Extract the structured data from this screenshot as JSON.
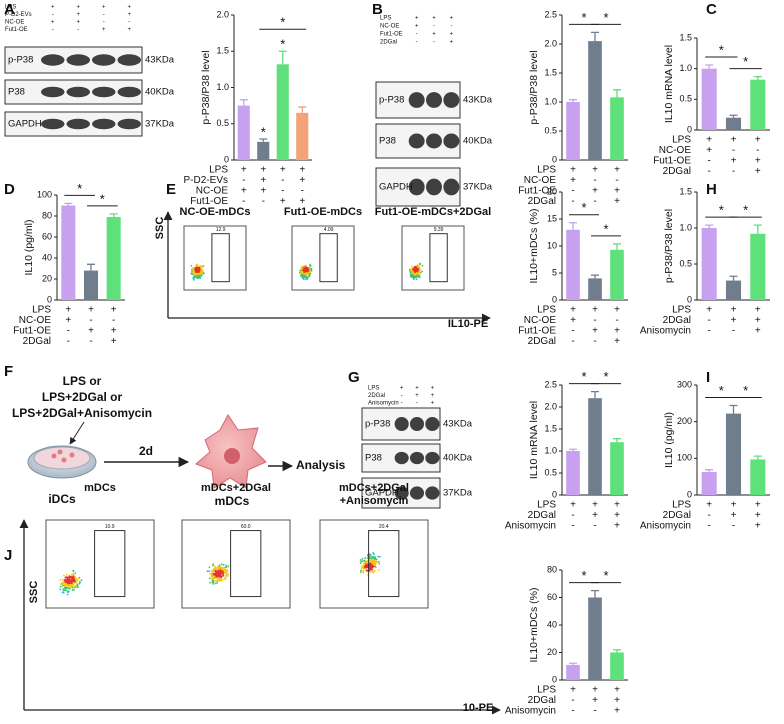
{
  "panels": [
    "A",
    "B",
    "C",
    "D",
    "E",
    "F",
    "G",
    "H",
    "I",
    "J"
  ],
  "chart_data": [
    {
      "type": "bar",
      "y_label": "p-P38/P38 level",
      "ylim": [
        0,
        2.0
      ],
      "yticks": [
        0,
        {
          "value": 0.5,
          "label": "0.5"
        },
        {
          "value": 1.0,
          "label": "1.0"
        },
        {
          "value": 1.5,
          "label": "1.5"
        },
        {
          "value": 2.0,
          "label": "2.0"
        }
      ],
      "values": [
        0.75,
        0.25,
        1.32,
        0.65
      ],
      "errors": [
        0.08,
        0.04,
        0.18,
        0.08
      ],
      "colors": [
        "#c8a0f0",
        "#6f7d8c",
        "#5ee07a",
        "#f2a378"
      ],
      "conditions": [
        {
          "name": "LPS",
          "signs": [
            "+",
            "+",
            "+",
            "+"
          ]
        },
        {
          "name": "P-D2-EVs",
          "signs": [
            "-",
            "+",
            "-",
            "+"
          ]
        },
        {
          "name": "NC-OE",
          "signs": [
            "+",
            "+",
            "-",
            "-"
          ]
        },
        {
          "name": "Fut1-OE",
          "signs": [
            "-",
            "-",
            "+",
            "+"
          ]
        }
      ],
      "stars": [
        {
          "bars": [
            1
          ],
          "label": "*"
        },
        {
          "bars": [
            2
          ],
          "label": "*"
        },
        {
          "bars": [
            1,
            3
          ],
          "label": "*"
        }
      ]
    },
    {
      "type": "bar",
      "y_label": "p-P38/P38 level",
      "ylim": [
        0,
        2.5
      ],
      "yticks": [
        0,
        {
          "value": 0.5,
          "label": "0.5"
        },
        {
          "value": 1.0,
          "label": "1.0"
        },
        {
          "value": 1.5,
          "label": "1.5"
        },
        {
          "value": 2.0,
          "label": "2.0"
        },
        {
          "value": 2.5,
          "label": "2.5"
        }
      ],
      "values": [
        1.0,
        2.05,
        1.08
      ],
      "errors": [
        0.04,
        0.15,
        0.13
      ],
      "colors": [
        "#c8a0f0",
        "#6f7d8c",
        "#5ee07a"
      ],
      "conditions": [
        {
          "name": "LPS",
          "signs": [
            "+",
            "+",
            "+"
          ]
        },
        {
          "name": "NC-OE",
          "signs": [
            "+",
            "-",
            "-"
          ]
        },
        {
          "name": "Fut1-OE",
          "signs": [
            "-",
            "+",
            "+"
          ]
        },
        {
          "name": "2DGal",
          "signs": [
            "-",
            "-",
            "+"
          ]
        }
      ],
      "stars": [
        {
          "bars": [
            0,
            1
          ],
          "label": "*"
        },
        {
          "bars": [
            1,
            2
          ],
          "label": "*"
        }
      ]
    },
    {
      "type": "bar",
      "y_label": "IL10 mRNA level",
      "ylim": [
        0,
        1.5
      ],
      "yticks": [
        0,
        {
          "value": 0.5,
          "label": "0.5"
        },
        {
          "value": 1.0,
          "label": "1.0"
        },
        {
          "value": 1.5,
          "label": "1.5"
        }
      ],
      "values": [
        1.0,
        0.2,
        0.82
      ],
      "errors": [
        0.06,
        0.04,
        0.05
      ],
      "colors": [
        "#c8a0f0",
        "#6f7d8c",
        "#5ee07a"
      ],
      "conditions": [
        {
          "name": "LPS",
          "signs": [
            "+",
            "+",
            "+"
          ]
        },
        {
          "name": "NC-OE",
          "signs": [
            "+",
            "-",
            "-"
          ]
        },
        {
          "name": "Fut1-OE",
          "signs": [
            "-",
            "+",
            "+"
          ]
        },
        {
          "name": "2DGal",
          "signs": [
            "-",
            "-",
            "+"
          ]
        }
      ],
      "stars": [
        {
          "bars": [
            0,
            1
          ],
          "label": "*"
        },
        {
          "bars": [
            1,
            2
          ],
          "label": "*"
        }
      ]
    },
    {
      "type": "bar",
      "y_label": "IL10 (pg/ml)",
      "ylim": [
        0,
        100
      ],
      "yticks": [
        0,
        20,
        40,
        60,
        80,
        100
      ],
      "values": [
        90,
        28,
        79
      ],
      "errors": [
        2,
        6,
        3
      ],
      "colors": [
        "#c8a0f0",
        "#6f7d8c",
        "#5ee07a"
      ],
      "conditions": [
        {
          "name": "LPS",
          "signs": [
            "+",
            "+",
            "+"
          ]
        },
        {
          "name": "NC-OE",
          "signs": [
            "+",
            "-",
            "-"
          ]
        },
        {
          "name": "Fut1-OE",
          "signs": [
            "-",
            "+",
            "+"
          ]
        },
        {
          "name": "2DGal",
          "signs": [
            "-",
            "-",
            "+"
          ]
        }
      ],
      "stars": [
        {
          "bars": [
            0,
            1
          ],
          "label": "*"
        },
        {
          "bars": [
            1,
            2
          ],
          "label": "*"
        }
      ]
    },
    {
      "type": "bar",
      "y_label": "IL10+mDCs (%)",
      "ylim": [
        0,
        20
      ],
      "yticks": [
        0,
        5,
        10,
        15,
        20
      ],
      "values": [
        13,
        4,
        9.3
      ],
      "errors": [
        1.3,
        0.6,
        1.1
      ],
      "colors": [
        "#c8a0f0",
        "#6f7d8c",
        "#5ee07a"
      ],
      "conditions": [
        {
          "name": "LPS",
          "signs": [
            "+",
            "+",
            "+"
          ]
        },
        {
          "name": "NC-OE",
          "signs": [
            "+",
            "-",
            "-"
          ]
        },
        {
          "name": "Fut1-OE",
          "signs": [
            "-",
            "+",
            "+"
          ]
        },
        {
          "name": "2DGal",
          "signs": [
            "-",
            "-",
            "+"
          ]
        }
      ],
      "stars": [
        {
          "bars": [
            0,
            1
          ],
          "label": "*"
        },
        {
          "bars": [
            1,
            2
          ],
          "label": "*"
        }
      ]
    },
    {
      "type": "bar",
      "y_label": "p-P38/P38 level",
      "ylim": [
        0,
        1.5
      ],
      "yticks": [
        0,
        {
          "value": 0.5,
          "label": "0.5"
        },
        {
          "value": 1.0,
          "label": "1.0"
        },
        {
          "value": 1.5,
          "label": "1.5"
        }
      ],
      "values": [
        1.0,
        0.27,
        0.92
      ],
      "errors": [
        0.04,
        0.06,
        0.12
      ],
      "colors": [
        "#c8a0f0",
        "#6f7d8c",
        "#5ee07a"
      ],
      "conditions": [
        {
          "name": "LPS",
          "signs": [
            "+",
            "+",
            "+"
          ]
        },
        {
          "name": "2DGal",
          "signs": [
            "-",
            "+",
            "+"
          ]
        },
        {
          "name": "Anisomycin",
          "signs": [
            "-",
            "-",
            "+"
          ]
        }
      ],
      "stars": [
        {
          "bars": [
            0,
            1
          ],
          "label": "*"
        },
        {
          "bars": [
            1,
            2
          ],
          "label": "*"
        }
      ]
    },
    {
      "type": "bar",
      "y_label": "IL10 mRNA level",
      "ylim": [
        0,
        2.5
      ],
      "yticks": [
        0,
        {
          "value": 0.5,
          "label": "0.5"
        },
        {
          "value": 1.0,
          "label": "1.0"
        },
        {
          "value": 1.5,
          "label": "1.5"
        },
        {
          "value": 2.0,
          "label": "2.0"
        },
        {
          "value": 2.5,
          "label": "2.5"
        }
      ],
      "values": [
        1.0,
        2.2,
        1.2
      ],
      "errors": [
        0.04,
        0.15,
        0.08
      ],
      "colors": [
        "#c8a0f0",
        "#6f7d8c",
        "#5ee07a"
      ],
      "conditions": [
        {
          "name": "LPS",
          "signs": [
            "+",
            "+",
            "+"
          ]
        },
        {
          "name": "2DGal",
          "signs": [
            "-",
            "+",
            "+"
          ]
        },
        {
          "name": "Anisomycin",
          "signs": [
            "-",
            "-",
            "+"
          ]
        }
      ],
      "stars": [
        {
          "bars": [
            0,
            1
          ],
          "label": "*"
        },
        {
          "bars": [
            1,
            2
          ],
          "label": "*"
        }
      ]
    },
    {
      "type": "bar",
      "y_label": "IL10 (pg/ml)",
      "ylim": [
        0,
        300
      ],
      "yticks": [
        0,
        100,
        200,
        300
      ],
      "values": [
        63,
        222,
        97
      ],
      "errors": [
        6,
        22,
        9
      ],
      "colors": [
        "#c8a0f0",
        "#6f7d8c",
        "#5ee07a"
      ],
      "conditions": [
        {
          "name": "LPS",
          "signs": [
            "+",
            "+",
            "+"
          ]
        },
        {
          "name": "2DGal",
          "signs": [
            "-",
            "+",
            "+"
          ]
        },
        {
          "name": "Anisomycin",
          "signs": [
            "-",
            "-",
            "+"
          ]
        }
      ],
      "stars": [
        {
          "bars": [
            0,
            1
          ],
          "label": "*"
        },
        {
          "bars": [
            1,
            2
          ],
          "label": "*"
        }
      ]
    },
    {
      "type": "bar",
      "y_label": "IL10+mDCs (%)",
      "ylim": [
        0,
        80
      ],
      "yticks": [
        0,
        20,
        40,
        60,
        80
      ],
      "values": [
        11,
        60,
        20
      ],
      "errors": [
        1.2,
        5,
        2
      ],
      "colors": [
        "#c8a0f0",
        "#6f7d8c",
        "#5ee07a"
      ],
      "conditions": [
        {
          "name": "LPS",
          "signs": [
            "+",
            "+",
            "+"
          ]
        },
        {
          "name": "2DGal",
          "signs": [
            "-",
            "+",
            "+"
          ]
        },
        {
          "name": "Anisomycin",
          "signs": [
            "-",
            "-",
            "+"
          ]
        }
      ],
      "stars": [
        {
          "bars": [
            0,
            1
          ],
          "label": "*"
        },
        {
          "bars": [
            1,
            2
          ],
          "label": "*"
        }
      ]
    }
  ],
  "blots": [
    {
      "conditions": [
        {
          "name": "LPS",
          "signs": [
            "+",
            "+",
            "+",
            "+"
          ]
        },
        {
          "name": "P-D2-EVs",
          "signs": [
            "-",
            "+",
            "-",
            "+"
          ]
        },
        {
          "name": "NC-OE",
          "signs": [
            "+",
            "+",
            "-",
            "-"
          ]
        },
        {
          "name": "Fut1-OE",
          "signs": [
            "-",
            "-",
            "+",
            "+"
          ]
        }
      ],
      "rows": [
        {
          "protein": "p-P38",
          "size": "43KDa"
        },
        {
          "protein": "P38",
          "size": "40KDa"
        },
        {
          "protein": "GAPDH",
          "size": "37KDa"
        }
      ]
    },
    {
      "conditions": [
        {
          "name": "LPS",
          "signs": [
            "+",
            "+",
            "+"
          ]
        },
        {
          "name": "NC-OE",
          "signs": [
            "+",
            "-",
            "-"
          ]
        },
        {
          "name": "Fut1-OE",
          "signs": [
            "-",
            "+",
            "+"
          ]
        },
        {
          "name": "2DGal",
          "signs": [
            "-",
            "-",
            "+"
          ]
        }
      ],
      "rows": [
        {
          "protein": "p-P38",
          "size": "43KDa"
        },
        {
          "protein": "P38",
          "size": "40KDa"
        },
        {
          "protein": "GAPDH",
          "size": "37KDa"
        }
      ]
    },
    {
      "conditions": [
        {
          "name": "LPS",
          "signs": [
            "+",
            "+",
            "+"
          ]
        },
        {
          "name": "2DGal",
          "signs": [
            "-",
            "+",
            "+"
          ]
        },
        {
          "name": "Anisomycin",
          "signs": [
            "-",
            "-",
            "+"
          ]
        }
      ],
      "rows": [
        {
          "protein": "p-P38",
          "size": "43KDa"
        },
        {
          "protein": "P38",
          "size": "40KDa"
        },
        {
          "protein": "GAPDH",
          "size": "37KDa"
        }
      ]
    }
  ],
  "flow": [
    {
      "titles": [
        "NC-OE-mDCs",
        "Fut1-OE-mDCs",
        "Fut1-OE-mDCs+2DGal"
      ],
      "gates": [
        "12.9",
        "4.09",
        "9.39"
      ],
      "y_axis": "SSC",
      "x_axis": "IL10-PE"
    },
    {
      "titles": [
        "mDCs",
        "mDCs+2DGal",
        "mDCs+2DGal\n+Anisomycin"
      ],
      "gates": [
        "10.9",
        "60.0",
        "20.4"
      ],
      "y_axis": "SSC",
      "x_axis": "10-PE"
    }
  ],
  "diagram": {
    "treatments": [
      "LPS  or",
      "LPS+2DGal or",
      "LPS+2DGal+Anisomycin"
    ],
    "duration": "2d",
    "start": "iDCs",
    "end": "mDCs",
    "result": "Analysis"
  }
}
